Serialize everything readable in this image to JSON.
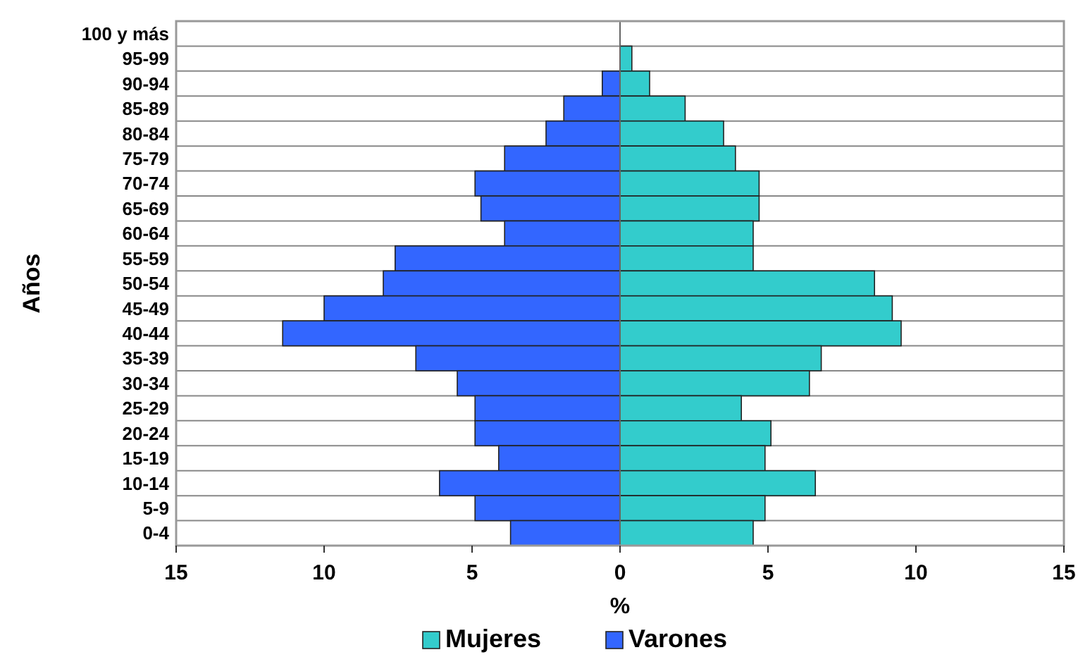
{
  "chart_data": {
    "type": "bar",
    "orientation": "horizontal",
    "xlabel": "%",
    "ylabel": "Años",
    "categories": [
      "100 y más",
      "95-99",
      "90-94",
      "85-89",
      "80-84",
      "75-79",
      "70-74",
      "65-69",
      "60-64",
      "55-59",
      "50-54",
      "45-49",
      "40-44",
      "35-39",
      "30-34",
      "25-29",
      "20-24",
      "15-19",
      "10-14",
      "5-9",
      "0-4"
    ],
    "series": [
      {
        "name": "Mujeres",
        "color": "#33cccc",
        "values": [
          0,
          0.4,
          1.0,
          2.2,
          3.5,
          3.9,
          4.7,
          4.7,
          4.5,
          4.5,
          8.6,
          9.2,
          9.5,
          6.8,
          6.4,
          4.1,
          5.1,
          4.9,
          6.6,
          4.9,
          4.5
        ]
      },
      {
        "name": "Varones",
        "color": "#3366ff",
        "values": [
          0,
          0,
          -0.6,
          -1.9,
          -2.5,
          -3.9,
          -4.9,
          -4.7,
          -3.9,
          -7.6,
          -8.0,
          -10.0,
          -11.4,
          -6.9,
          -5.5,
          -4.9,
          -4.9,
          -4.1,
          -6.1,
          -4.9,
          -3.7
        ]
      }
    ],
    "xlim": [
      -15,
      15
    ],
    "xticks": [
      {
        "value": -15,
        "label": "15"
      },
      {
        "value": -10,
        "label": "10"
      },
      {
        "value": -5,
        "label": "5"
      },
      0,
      5,
      10,
      15
    ],
    "stacked": true,
    "grid": "y",
    "legend": "bottom"
  }
}
